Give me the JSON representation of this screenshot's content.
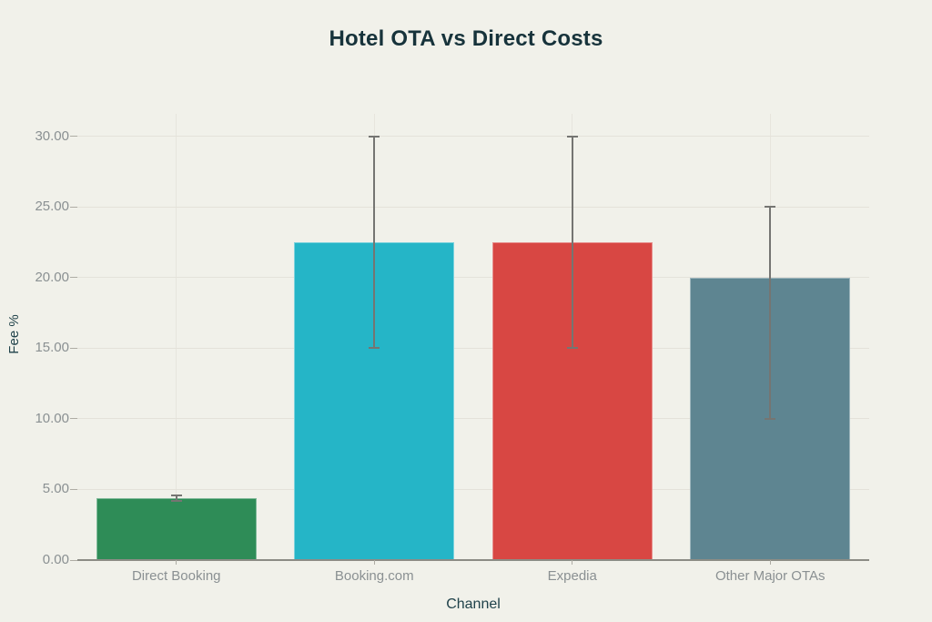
{
  "chart_data": {
    "type": "bar",
    "title": "Hotel OTA vs Direct Costs",
    "xlabel": "Channel",
    "ylabel": "Fee %",
    "categories": [
      "Direct Booking",
      "Booking.com",
      "Expedia",
      "Other Major OTAs"
    ],
    "values": [
      4.4,
      22.5,
      22.5,
      20
    ],
    "error_low": [
      4.2,
      15,
      15,
      10
    ],
    "error_high": [
      4.6,
      30,
      30,
      25
    ],
    "bar_colors": [
      "#2e8c57",
      "#25b5c7",
      "#d84743",
      "#5e8591"
    ],
    "yticks": [
      0,
      5,
      10,
      15,
      20,
      25,
      30
    ],
    "ytick_labels": [
      "0.00",
      "5.00",
      "10.00",
      "15.00",
      "20.00",
      "25.00",
      "30.00"
    ],
    "ylim": [
      0,
      31.6
    ],
    "grid": true,
    "legend": false,
    "error_bars": true
  },
  "style": {
    "background": "#f1f1ea",
    "title_color": "#17333b",
    "axis_title_color": "#20424a",
    "tick_label_color": "#8a9092",
    "gridline_color": "#e4e2da",
    "category_line_color": "#e7e5dd",
    "axis_line_color": "#8c8c85",
    "tick_mark_color": "#aeaca4",
    "error_bar_color": "#757572",
    "bar_border_color": "rgba(255,255,255,0.4)"
  }
}
